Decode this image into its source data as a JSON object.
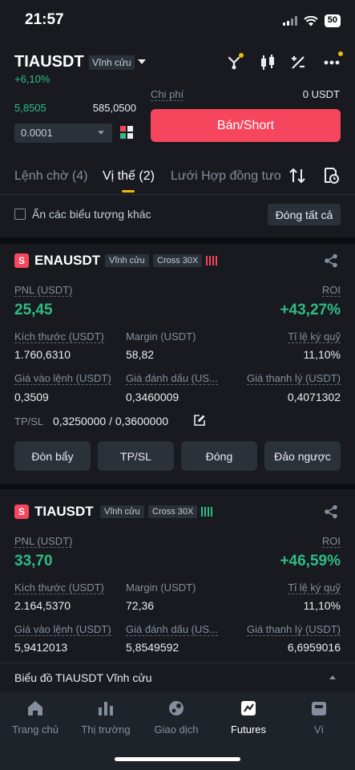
{
  "status_bar": {
    "time": "21:57",
    "battery": "50"
  },
  "header": {
    "pair": "TIAUSDT",
    "contract_type": "Vĩnh cửu",
    "change": "+6,10%"
  },
  "orderbook": {
    "row1_price": "5,8505",
    "row1_amount": "585,0500",
    "step": "0.0001"
  },
  "order_panel": {
    "fee_label": "Chi phí",
    "fee_value": "0 USDT",
    "sell_button": "Bán/Short"
  },
  "tabs": [
    {
      "label": "Lệnh chờ (4)"
    },
    {
      "label": "Vị thế (2)"
    },
    {
      "label": "Lưới Hợp đồng tươ"
    }
  ],
  "filter": {
    "hide_label": "Ẩn các biểu tượng khác",
    "close_all": "Đóng tất cả"
  },
  "positions": [
    {
      "side": "S",
      "symbol": "ENAUSDT",
      "contract": "Vĩnh cửu",
      "margin_mode": "Cross 30X",
      "pnl_label": "PNL (USDT)",
      "pnl": "25,45",
      "roi_label": "ROI",
      "roi": "+43,27%",
      "size_label": "Kích thước (USDT)",
      "size": "1.760,6310",
      "margin_label": "Margin (USDT)",
      "margin": "58,82",
      "ratio_label": "Tỉ lệ ký quỹ",
      "ratio": "11,10%",
      "entry_label": "Giá vào lệnh (USDT)",
      "entry": "0,3509",
      "mark_label": "Giá đánh dấu (US...",
      "mark": "0,3460009",
      "liq_label": "Giá thanh lý (USDT)",
      "liq": "0,4071302",
      "tpsl_label": "TP/SL",
      "tpsl": "0,3250000 / 0,3600000",
      "actions": [
        "Đòn bẩy",
        "TP/SL",
        "Đóng",
        "Đảo ngược"
      ]
    },
    {
      "side": "S",
      "symbol": "TIAUSDT",
      "contract": "Vĩnh cửu",
      "margin_mode": "Cross 30X",
      "pnl_label": "PNL (USDT)",
      "pnl": "33,70",
      "roi_label": "ROI",
      "roi": "+46,59%",
      "size_label": "Kích thước (USDT)",
      "size": "2.164,5370",
      "margin_label": "Margin (USDT)",
      "margin": "72,36",
      "ratio_label": "Tỉ lệ ký quỹ",
      "ratio": "11,10%",
      "entry_label": "Giá vào lệnh (USDT)",
      "entry": "5,9412013",
      "mark_label": "Giá đánh dấu (US...",
      "mark": "5,8549592",
      "liq_label": "Giá thanh lý (USDT)",
      "liq": "6,6959016"
    }
  ],
  "chart_link": "Biểu đồ TIAUSDT Vĩnh cửu",
  "bottom_nav": [
    {
      "label": "Trang chủ",
      "icon": "home-icon"
    },
    {
      "label": "Thị trường",
      "icon": "market-icon"
    },
    {
      "label": "Giao dịch",
      "icon": "trade-icon"
    },
    {
      "label": "Futures",
      "icon": "futures-icon"
    },
    {
      "label": "Ví",
      "icon": "wallet-icon"
    }
  ],
  "colors": {
    "green": "#2ebd85",
    "red": "#f6465d",
    "accent": "#f0b90b",
    "bg": "#181a20"
  }
}
